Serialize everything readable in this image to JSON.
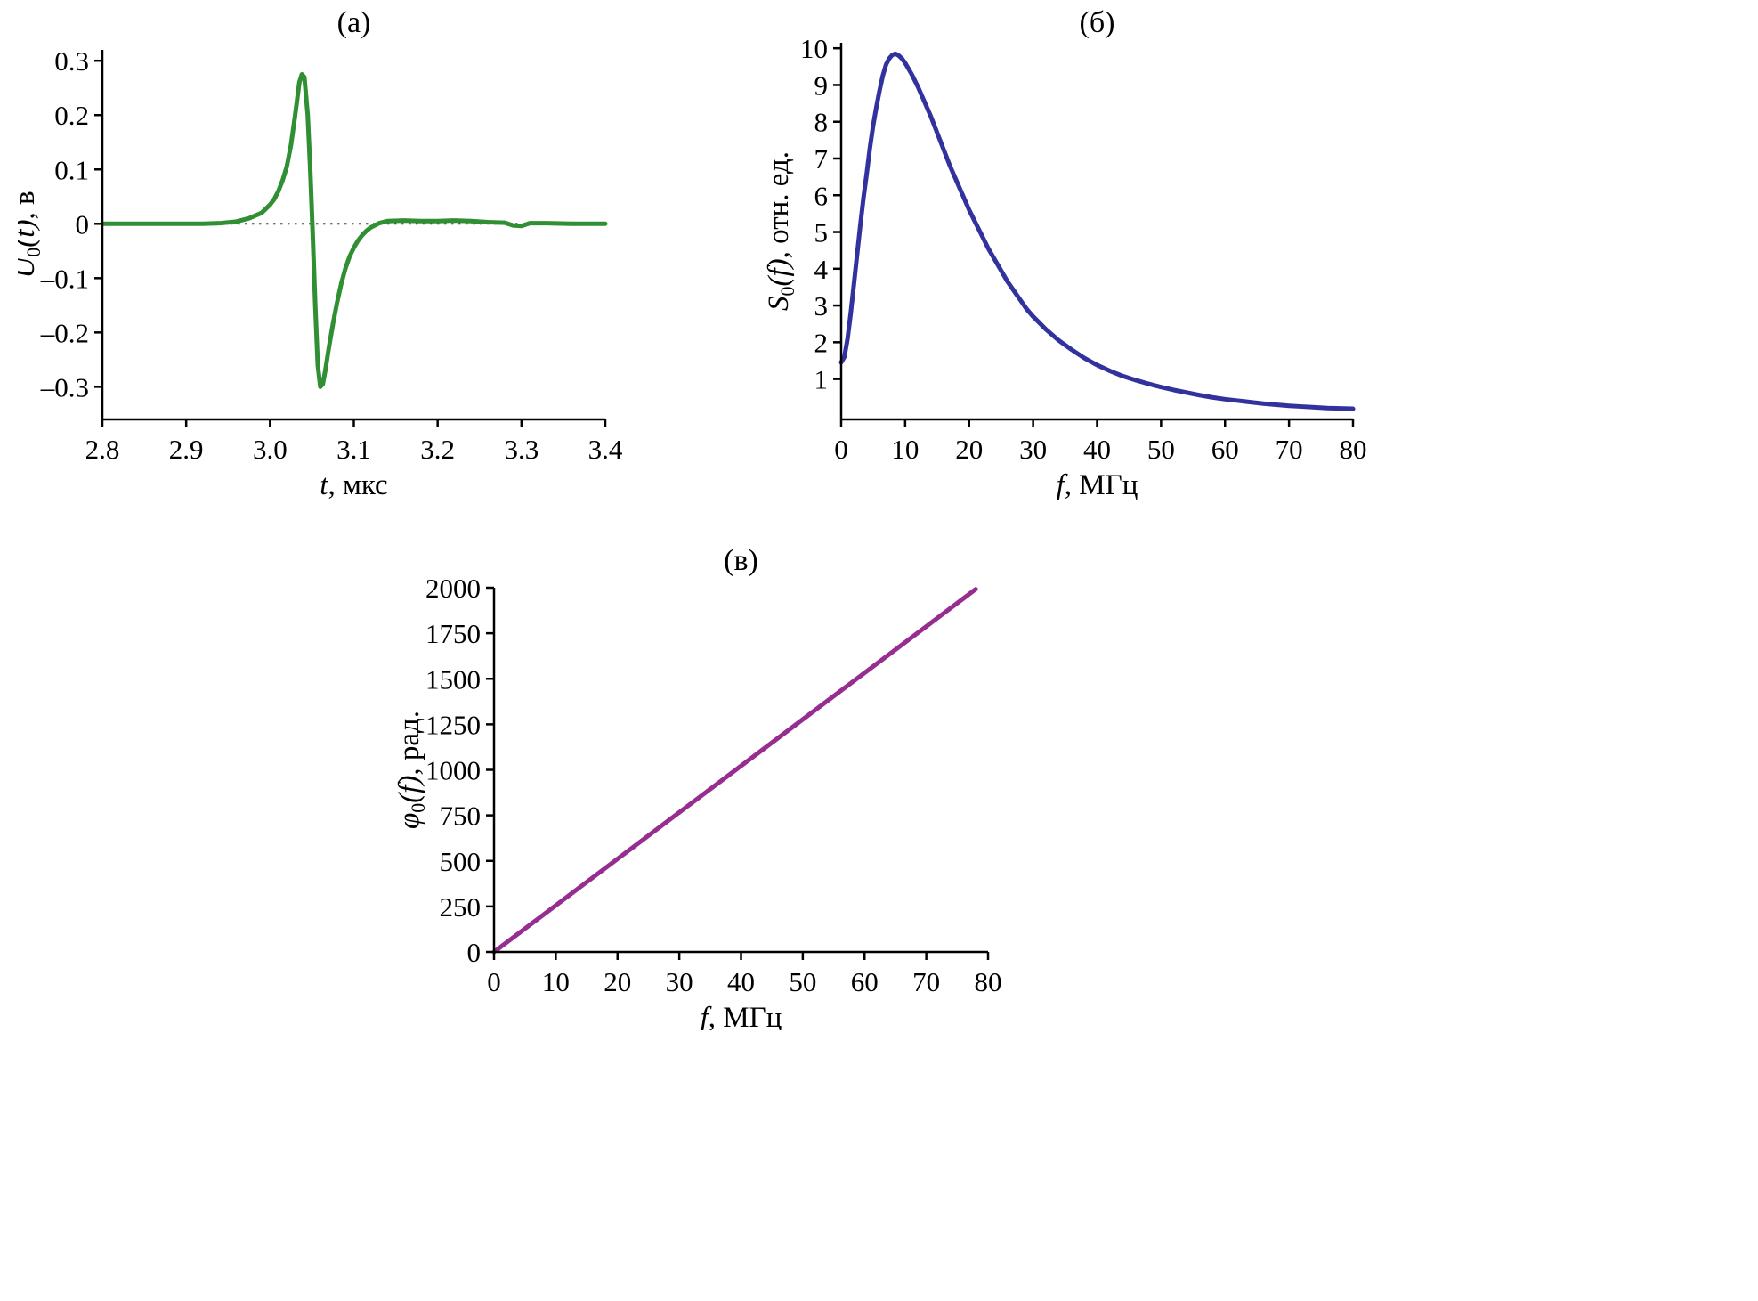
{
  "chart_data": [
    {
      "id": "a",
      "type": "line",
      "title": "(а)",
      "xlabel": {
        "var": "t",
        "rest": ", мкс"
      },
      "ylabel": {
        "pre": "U",
        "sub": "0",
        "post": "(t)",
        "rest": ", в"
      },
      "xlim": [
        2.8,
        3.4
      ],
      "ylim": [
        -0.36,
        0.32
      ],
      "xticks": [
        {
          "v": 2.8,
          "label": "2.8"
        },
        {
          "v": 2.9,
          "label": "2.9"
        },
        {
          "v": 3.0,
          "label": "3.0"
        },
        {
          "v": 3.1,
          "label": "3.1"
        },
        {
          "v": 3.2,
          "label": "3.2"
        },
        {
          "v": 3.3,
          "label": "3.3"
        },
        {
          "v": 3.4,
          "label": "3.4"
        }
      ],
      "yticks": [
        {
          "v": -0.3,
          "label": "–0.3"
        },
        {
          "v": -0.2,
          "label": "–0.2"
        },
        {
          "v": -0.1,
          "label": "–0.1"
        },
        {
          "v": 0,
          "label": "0"
        },
        {
          "v": 0.1,
          "label": "0.1"
        },
        {
          "v": 0.2,
          "label": "0.2"
        },
        {
          "v": 0.3,
          "label": "0.3"
        }
      ],
      "zero_line": true,
      "grid": false,
      "legend": false,
      "line_color": "#2f8f32",
      "series": [
        {
          "points": [
            [
              2.8,
              0
            ],
            [
              2.84,
              0
            ],
            [
              2.88,
              0
            ],
            [
              2.92,
              0
            ],
            [
              2.94,
              0.001
            ],
            [
              2.96,
              0.004
            ],
            [
              2.975,
              0.01
            ],
            [
              2.99,
              0.02
            ],
            [
              3.0,
              0.035
            ],
            [
              3.005,
              0.045
            ],
            [
              3.01,
              0.06
            ],
            [
              3.015,
              0.08
            ],
            [
              3.02,
              0.105
            ],
            [
              3.025,
              0.145
            ],
            [
              3.03,
              0.2
            ],
            [
              3.035,
              0.26
            ],
            [
              3.038,
              0.275
            ],
            [
              3.041,
              0.27
            ],
            [
              3.045,
              0.2
            ],
            [
              3.048,
              0.1
            ],
            [
              3.051,
              -0.02
            ],
            [
              3.054,
              -0.15
            ],
            [
              3.057,
              -0.26
            ],
            [
              3.06,
              -0.3
            ],
            [
              3.063,
              -0.295
            ],
            [
              3.066,
              -0.27
            ],
            [
              3.07,
              -0.23
            ],
            [
              3.075,
              -0.185
            ],
            [
              3.08,
              -0.145
            ],
            [
              3.085,
              -0.11
            ],
            [
              3.09,
              -0.082
            ],
            [
              3.095,
              -0.06
            ],
            [
              3.1,
              -0.044
            ],
            [
              3.105,
              -0.031
            ],
            [
              3.11,
              -0.021
            ],
            [
              3.115,
              -0.013
            ],
            [
              3.12,
              -0.007
            ],
            [
              3.13,
              0.001
            ],
            [
              3.14,
              0.005
            ],
            [
              3.16,
              0.006
            ],
            [
              3.18,
              0.005
            ],
            [
              3.2,
              0.005
            ],
            [
              3.22,
              0.006
            ],
            [
              3.24,
              0.005
            ],
            [
              3.26,
              0.003
            ],
            [
              3.28,
              0.002
            ],
            [
              3.29,
              -0.003
            ],
            [
              3.3,
              -0.004
            ],
            [
              3.31,
              0.001
            ],
            [
              3.33,
              0.001
            ],
            [
              3.36,
              0
            ],
            [
              3.4,
              0
            ]
          ]
        }
      ]
    },
    {
      "id": "b",
      "type": "line",
      "title": "(б)",
      "xlabel": {
        "var": "f",
        "rest": ", МГц"
      },
      "ylabel": {
        "pre": "S",
        "sub": "0",
        "post": "(f)",
        "rest": ", отн. ед."
      },
      "xlim": [
        0,
        80
      ],
      "ylim": [
        -0.1,
        10.15
      ],
      "xticks": [
        {
          "v": 0,
          "label": "0"
        },
        {
          "v": 10,
          "label": "10"
        },
        {
          "v": 20,
          "label": "20"
        },
        {
          "v": 30,
          "label": "30"
        },
        {
          "v": 40,
          "label": "40"
        },
        {
          "v": 50,
          "label": "50"
        },
        {
          "v": 60,
          "label": "60"
        },
        {
          "v": 70,
          "label": "70"
        },
        {
          "v": 80,
          "label": "80"
        }
      ],
      "yticks": [
        {
          "v": 1,
          "label": "1"
        },
        {
          "v": 2,
          "label": "2"
        },
        {
          "v": 3,
          "label": "3"
        },
        {
          "v": 4,
          "label": "4"
        },
        {
          "v": 5,
          "label": "5"
        },
        {
          "v": 6,
          "label": "6"
        },
        {
          "v": 7,
          "label": "7"
        },
        {
          "v": 8,
          "label": "8"
        },
        {
          "v": 9,
          "label": "9"
        },
        {
          "v": 10,
          "label": "10"
        }
      ],
      "zero_line": false,
      "grid": false,
      "legend": false,
      "line_color": "#32329e",
      "series": [
        {
          "points": [
            [
              0,
              1.45
            ],
            [
              0.5,
              1.6
            ],
            [
              1,
              2.1
            ],
            [
              1.5,
              2.8
            ],
            [
              2,
              3.6
            ],
            [
              2.5,
              4.4
            ],
            [
              3,
              5.2
            ],
            [
              3.5,
              5.95
            ],
            [
              4,
              6.6
            ],
            [
              4.5,
              7.3
            ],
            [
              5,
              7.9
            ],
            [
              5.5,
              8.4
            ],
            [
              6,
              8.85
            ],
            [
              6.5,
              9.25
            ],
            [
              7,
              9.55
            ],
            [
              7.5,
              9.72
            ],
            [
              8,
              9.82
            ],
            [
              8.5,
              9.85
            ],
            [
              9,
              9.8
            ],
            [
              9.5,
              9.72
            ],
            [
              10,
              9.6
            ],
            [
              11,
              9.3
            ],
            [
              12,
              8.95
            ],
            [
              13,
              8.55
            ],
            [
              14,
              8.15
            ],
            [
              15,
              7.7
            ],
            [
              16,
              7.25
            ],
            [
              17,
              6.8
            ],
            [
              18,
              6.4
            ],
            [
              19,
              6.0
            ],
            [
              20,
              5.6
            ],
            [
              21,
              5.25
            ],
            [
              22,
              4.9
            ],
            [
              23,
              4.55
            ],
            [
              24,
              4.25
            ],
            [
              25,
              3.95
            ],
            [
              26,
              3.65
            ],
            [
              27,
              3.4
            ],
            [
              28,
              3.15
            ],
            [
              29,
              2.9
            ],
            [
              30,
              2.7
            ],
            [
              32,
              2.35
            ],
            [
              34,
              2.05
            ],
            [
              36,
              1.8
            ],
            [
              38,
              1.57
            ],
            [
              40,
              1.38
            ],
            [
              42,
              1.22
            ],
            [
              44,
              1.08
            ],
            [
              46,
              0.97
            ],
            [
              48,
              0.87
            ],
            [
              50,
              0.78
            ],
            [
              52,
              0.7
            ],
            [
              54,
              0.63
            ],
            [
              56,
              0.56
            ],
            [
              58,
              0.5
            ],
            [
              60,
              0.45
            ],
            [
              62,
              0.41
            ],
            [
              64,
              0.37
            ],
            [
              66,
              0.33
            ],
            [
              68,
              0.3
            ],
            [
              70,
              0.27
            ],
            [
              72,
              0.25
            ],
            [
              74,
              0.23
            ],
            [
              76,
              0.21
            ],
            [
              78,
              0.2
            ],
            [
              80,
              0.19
            ]
          ]
        }
      ]
    },
    {
      "id": "v",
      "type": "line",
      "title": "(в)",
      "xlabel": {
        "var": "f",
        "rest": ", МГц"
      },
      "ylabel": {
        "pre": "φ",
        "sub": "0",
        "post": "(f)",
        "rest": ", рад."
      },
      "xlim": [
        0,
        80
      ],
      "ylim": [
        0,
        2000
      ],
      "xticks": [
        {
          "v": 0,
          "label": "0"
        },
        {
          "v": 10,
          "label": "10"
        },
        {
          "v": 20,
          "label": "20"
        },
        {
          "v": 30,
          "label": "30"
        },
        {
          "v": 40,
          "label": "40"
        },
        {
          "v": 50,
          "label": "50"
        },
        {
          "v": 60,
          "label": "60"
        },
        {
          "v": 70,
          "label": "70"
        },
        {
          "v": 80,
          "label": "80"
        }
      ],
      "yticks": [
        {
          "v": 0,
          "label": "0"
        },
        {
          "v": 250,
          "label": "250"
        },
        {
          "v": 500,
          "label": "500"
        },
        {
          "v": 750,
          "label": "750"
        },
        {
          "v": 1000,
          "label": "1000"
        },
        {
          "v": 1250,
          "label": "1250"
        },
        {
          "v": 1500,
          "label": "1500"
        },
        {
          "v": 1750,
          "label": "1750"
        },
        {
          "v": 2000,
          "label": "2000"
        }
      ],
      "zero_line": false,
      "grid": false,
      "legend": false,
      "line_color": "#962d91",
      "series": [
        {
          "points": [
            [
              0,
              0
            ],
            [
              78,
              1992
            ]
          ]
        }
      ]
    }
  ]
}
